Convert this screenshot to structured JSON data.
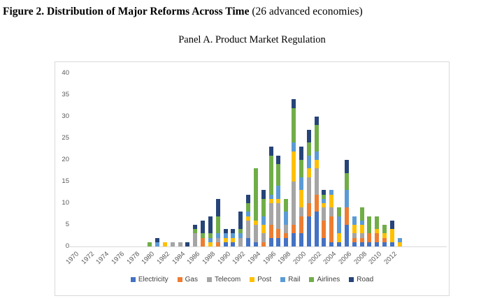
{
  "figure": {
    "title_bold": "Figure 2. Distribution of Major Reforms Across Time",
    "title_normal": " (26 advanced economies)",
    "panel_title": "Panel A. Product Market Regulation"
  },
  "chart_data": {
    "type": "bar",
    "stacked": true,
    "title": "Panel A. Product Market Regulation",
    "xlabel": "",
    "ylabel": "",
    "ylim": [
      0,
      40
    ],
    "y_ticks": [
      0,
      5,
      10,
      15,
      20,
      25,
      30,
      35,
      40
    ],
    "grid": false,
    "legend_position": "bottom",
    "axis_text_color": "#595959",
    "axis_line_color": "#d9d9d9",
    "x": [
      1970,
      1971,
      1972,
      1973,
      1974,
      1975,
      1976,
      1977,
      1978,
      1979,
      1980,
      1981,
      1982,
      1983,
      1984,
      1985,
      1986,
      1987,
      1988,
      1989,
      1990,
      1991,
      1992,
      1993,
      1994,
      1995,
      1996,
      1997,
      1998,
      1999,
      2000,
      2001,
      2002,
      2003,
      2004,
      2005,
      2006,
      2007,
      2008,
      2009,
      2010,
      2011,
      2012,
      2013
    ],
    "x_tick_labels": [
      "1970",
      "1972",
      "1974",
      "1976",
      "1978",
      "1980",
      "1982",
      "1984",
      "1986",
      "1988",
      "1990",
      "1992",
      "1994",
      "1996",
      "1998",
      "2000",
      "2002",
      "2004",
      "2006",
      "2008",
      "2010",
      "2012"
    ],
    "series": [
      {
        "name": "Electricity",
        "color": "#4472C4",
        "values": [
          0,
          0,
          0,
          0,
          0,
          0,
          0,
          0,
          0,
          0,
          0,
          0,
          0,
          0,
          0,
          0,
          0,
          0,
          0,
          0,
          1,
          1,
          0,
          2,
          1,
          0,
          2,
          2,
          2,
          3,
          3,
          7,
          8,
          2,
          1,
          1,
          5,
          1,
          1,
          1,
          1,
          1,
          1,
          0
        ]
      },
      {
        "name": "Gas",
        "color": "#ED7D31",
        "values": [
          0,
          0,
          0,
          0,
          0,
          0,
          0,
          0,
          0,
          0,
          0,
          0,
          0,
          0,
          0,
          0,
          0,
          2,
          0,
          1,
          0,
          0,
          0,
          0,
          0,
          1,
          3,
          2,
          1,
          2,
          4,
          3,
          4,
          4,
          6,
          0,
          4,
          1,
          1,
          2,
          2,
          1,
          0,
          0
        ]
      },
      {
        "name": "Telecom",
        "color": "#A5A5A5",
        "values": [
          0,
          0,
          0,
          0,
          0,
          0,
          0,
          0,
          0,
          0,
          0,
          0,
          0,
          1,
          1,
          0,
          3,
          0,
          0,
          1,
          0,
          0,
          2,
          4,
          4,
          2,
          5,
          6,
          2,
          10,
          2,
          6,
          6,
          3,
          2,
          0,
          0,
          1,
          1,
          0,
          0,
          0,
          0,
          0
        ]
      },
      {
        "name": "Post",
        "color": "#FFC000",
        "values": [
          0,
          0,
          0,
          0,
          0,
          0,
          0,
          0,
          0,
          0,
          0,
          0,
          1,
          0,
          0,
          0,
          0,
          0,
          1,
          0,
          1,
          1,
          0,
          1,
          1,
          2,
          1,
          1,
          0,
          7,
          4,
          2,
          2,
          1,
          3,
          2,
          0,
          2,
          2,
          0,
          1,
          1,
          3,
          1
        ]
      },
      {
        "name": "Rail",
        "color": "#5B9BD5",
        "values": [
          0,
          0,
          0,
          0,
          0,
          0,
          0,
          0,
          0,
          0,
          0,
          1,
          0,
          0,
          0,
          0,
          0,
          0,
          1,
          1,
          1,
          1,
          1,
          1,
          0,
          2,
          1,
          3,
          3,
          2,
          3,
          3,
          2,
          1,
          1,
          4,
          4,
          2,
          1,
          0,
          0,
          0,
          0,
          1
        ]
      },
      {
        "name": "Airlines",
        "color": "#70AD47",
        "values": [
          0,
          0,
          0,
          0,
          0,
          0,
          0,
          0,
          0,
          0,
          1,
          0,
          0,
          0,
          0,
          0,
          1,
          1,
          1,
          4,
          0,
          0,
          1,
          2,
          12,
          4,
          9,
          5,
          3,
          8,
          4,
          3,
          6,
          1,
          0,
          2,
          4,
          0,
          3,
          4,
          3,
          2,
          0,
          0
        ]
      },
      {
        "name": "Road",
        "color": "#264478",
        "values": [
          0,
          0,
          0,
          0,
          0,
          0,
          0,
          0,
          0,
          0,
          0,
          1,
          0,
          0,
          0,
          1,
          1,
          3,
          4,
          4,
          1,
          1,
          4,
          2,
          0,
          2,
          2,
          2,
          0,
          2,
          3,
          3,
          2,
          1,
          0,
          0,
          3,
          0,
          0,
          0,
          0,
          0,
          2,
          0
        ]
      }
    ]
  }
}
